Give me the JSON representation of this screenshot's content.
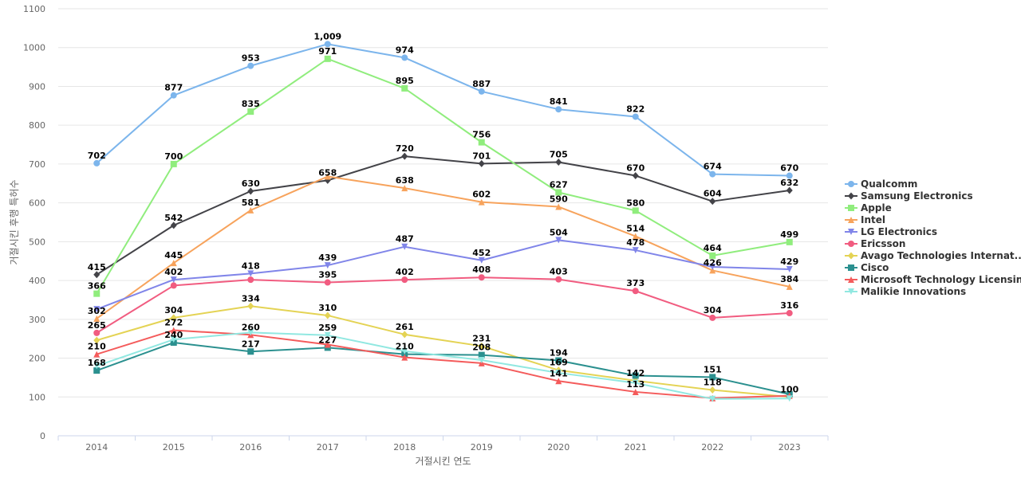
{
  "chart_data": {
    "type": "line",
    "title": "",
    "xlabel": "거절시킨 연도",
    "ylabel": "거절시킨 후행 특허수",
    "ylim": [
      0,
      1100
    ],
    "yticks": [
      0,
      100,
      200,
      300,
      400,
      500,
      600,
      700,
      800,
      900,
      1000,
      1100
    ],
    "categories": [
      "2014",
      "2015",
      "2016",
      "2017",
      "2018",
      "2019",
      "2020",
      "2021",
      "2022",
      "2023"
    ],
    "grid": true,
    "legend_position": "right",
    "series": [
      {
        "name": "Qualcomm",
        "color": "#7cb5ec",
        "marker": "circle",
        "values": [
          702,
          877,
          953,
          1009,
          974,
          887,
          841,
          822,
          674,
          670
        ],
        "labels": [
          "702",
          "877",
          "953",
          "1,009",
          "974",
          "887",
          "841",
          "822",
          "674",
          "670"
        ]
      },
      {
        "name": "Samsung Electronics",
        "color": "#434348",
        "marker": "diamond",
        "values": [
          415,
          542,
          630,
          658,
          720,
          701,
          705,
          670,
          604,
          632
        ],
        "labels": [
          "415",
          "542",
          "630",
          "658",
          "720",
          "701",
          "705",
          "670",
          "604",
          "632"
        ]
      },
      {
        "name": "Apple",
        "color": "#90ed7d",
        "marker": "square",
        "values": [
          366,
          700,
          835,
          971,
          895,
          756,
          627,
          580,
          464,
          499
        ],
        "labels": [
          "366",
          "700",
          "835",
          "971",
          "895",
          "756",
          "627",
          "580",
          "464",
          "499"
        ]
      },
      {
        "name": "Intel",
        "color": "#f7a35c",
        "marker": "triangle",
        "values": [
          302,
          445,
          581,
          668,
          638,
          602,
          590,
          514,
          426,
          384
        ],
        "labels": [
          "302",
          "445",
          "581",
          "",
          "638",
          "602",
          "590",
          "514",
          "426",
          "384"
        ]
      },
      {
        "name": "LG Electronics",
        "color": "#8085e9",
        "marker": "triangle-down",
        "values": [
          326,
          402,
          418,
          439,
          487,
          452,
          504,
          478,
          435,
          429
        ],
        "labels": [
          "",
          "402",
          "418",
          "439",
          "487",
          "452",
          "504",
          "478",
          "",
          "429"
        ]
      },
      {
        "name": "Ericsson",
        "color": "#f15c80",
        "marker": "circle",
        "values": [
          265,
          387,
          402,
          395,
          402,
          408,
          403,
          373,
          304,
          316
        ],
        "labels": [
          "265",
          "",
          "",
          "395",
          "402",
          "408",
          "403",
          "373",
          "304",
          "316"
        ]
      },
      {
        "name": "Avago Technologies Internat...",
        "color": "#e4d354",
        "marker": "diamond",
        "values": [
          246,
          304,
          334,
          310,
          261,
          231,
          169,
          142,
          118,
          100
        ],
        "labels": [
          "",
          "304",
          "334",
          "310",
          "261",
          "231",
          "169",
          "142",
          "118",
          "100"
        ]
      },
      {
        "name": "Cisco",
        "color": "#2b908f",
        "marker": "square",
        "values": [
          168,
          240,
          217,
          227,
          210,
          208,
          194,
          155,
          151,
          107
        ],
        "labels": [
          "168",
          "240",
          "217",
          "227",
          "210",
          "208",
          "194",
          "",
          "151",
          ""
        ]
      },
      {
        "name": "Microsoft Technology Licensing",
        "color": "#f45b5b",
        "marker": "triangle",
        "values": [
          210,
          272,
          260,
          235,
          202,
          187,
          141,
          113,
          97,
          103
        ],
        "labels": [
          "210",
          "272",
          "260",
          "",
          "",
          "",
          "141",
          "113",
          "",
          ""
        ]
      },
      {
        "name": "Malikie Innovations",
        "color": "#91e8e1",
        "marker": "triangle-down",
        "values": [
          180,
          248,
          266,
          259,
          218,
          195,
          162,
          136,
          95,
          96
        ],
        "labels": [
          "",
          "",
          "",
          "259",
          "",
          "",
          "",
          "",
          "",
          ""
        ]
      }
    ]
  }
}
